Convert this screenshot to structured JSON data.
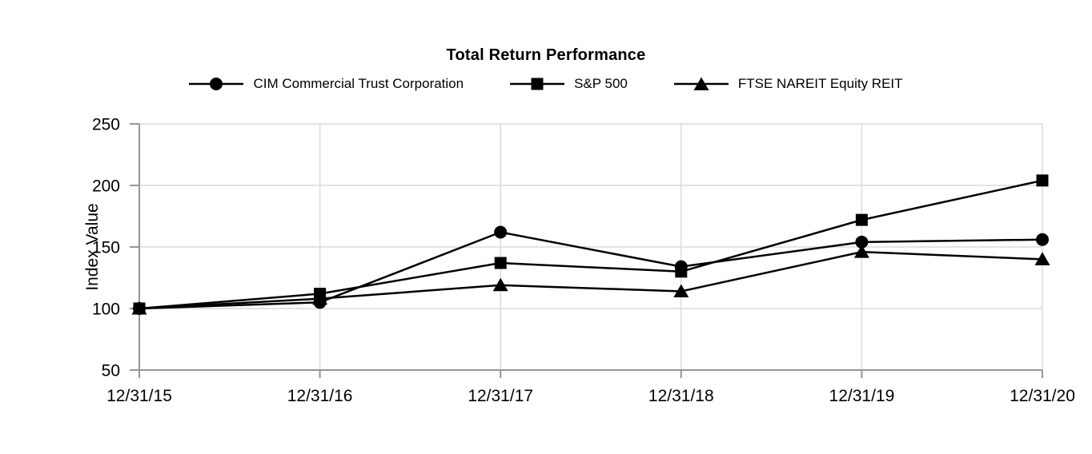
{
  "chart_data": {
    "type": "line",
    "title": "Total Return Performance",
    "ylabel": "Index Value",
    "xlabel": "",
    "categories": [
      "12/31/15",
      "12/31/16",
      "12/31/17",
      "12/31/18",
      "12/31/19",
      "12/31/20"
    ],
    "series": [
      {
        "name": "CIM Commercial Trust Corporation",
        "marker": "circle",
        "values": [
          100,
          105,
          162,
          134,
          154,
          156
        ]
      },
      {
        "name": "S&P 500",
        "marker": "square",
        "values": [
          100,
          112,
          137,
          130,
          172,
          204
        ]
      },
      {
        "name": "FTSE NAREIT Equity REIT",
        "marker": "triangle",
        "values": [
          100,
          108,
          119,
          114,
          146,
          140
        ]
      }
    ],
    "y_ticks": [
      50,
      100,
      150,
      200,
      250
    ],
    "ylim": [
      50,
      250
    ],
    "grid": true,
    "legend_position": "top",
    "colors": {
      "series": "#000000",
      "gridline": "#dadada",
      "axis": "#959595",
      "text": "#000000"
    }
  }
}
